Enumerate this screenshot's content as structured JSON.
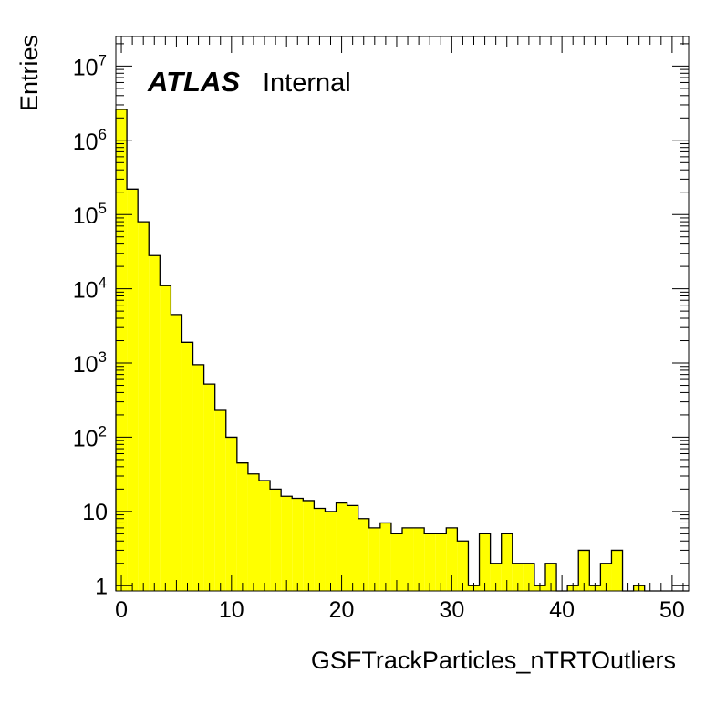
{
  "chart_data": {
    "type": "bar",
    "style": "histogram",
    "fill_color": "#ffff00",
    "line_color": "#000000",
    "xlabel": "GSFTrackParticles_nTRTOutliers",
    "ylabel": "Entries",
    "xlim": [
      -0.5,
      51.5
    ],
    "ylim": [
      0.85,
      25000000
    ],
    "yscale": "log",
    "bin_width": 1,
    "bin_low_edges": [
      -0.5,
      0.5,
      1.5,
      2.5,
      3.5,
      4.5,
      5.5,
      6.5,
      7.5,
      8.5,
      9.5,
      10.5,
      11.5,
      12.5,
      13.5,
      14.5,
      15.5,
      16.5,
      17.5,
      18.5,
      19.5,
      20.5,
      21.5,
      22.5,
      23.5,
      24.5,
      25.5,
      26.5,
      27.5,
      28.5,
      29.5,
      30.5,
      31.5,
      32.5,
      33.5,
      34.5,
      35.5,
      36.5,
      37.5,
      38.5,
      39.5,
      40.5,
      41.5,
      42.5,
      43.5,
      44.5,
      45.5,
      46.5,
      47.5,
      48.5,
      49.5,
      50.5
    ],
    "values": [
      2600000,
      220000,
      80000,
      28000,
      11000,
      4500,
      1900,
      950,
      520,
      230,
      100,
      45,
      32,
      26,
      20,
      16,
      15,
      14,
      11,
      10,
      13,
      12,
      8,
      6,
      7,
      5,
      6,
      6,
      5,
      5,
      6,
      4,
      1,
      5,
      2,
      5,
      2,
      2,
      1,
      2,
      0,
      1,
      3,
      1,
      2,
      3,
      0,
      1,
      0,
      0,
      0,
      0
    ],
    "x_ticks": [
      0,
      10,
      20,
      30,
      40,
      50
    ],
    "x_tick_labels": [
      "0",
      "10",
      "20",
      "30",
      "40",
      "50"
    ],
    "y_ticks": [
      1,
      10,
      100,
      1000,
      10000,
      100000,
      1000000,
      10000000
    ],
    "y_tick_labels": [
      {
        "base": "1",
        "exp": ""
      },
      {
        "base": "10",
        "exp": ""
      },
      {
        "base": "10",
        "exp": "2"
      },
      {
        "base": "10",
        "exp": "3"
      },
      {
        "base": "10",
        "exp": "4"
      },
      {
        "base": "10",
        "exp": "5"
      },
      {
        "base": "10",
        "exp": "6"
      },
      {
        "base": "10",
        "exp": "7"
      }
    ],
    "grid": false,
    "legend": "none",
    "label_atlas": "ATLAS",
    "label_status": "Internal"
  }
}
